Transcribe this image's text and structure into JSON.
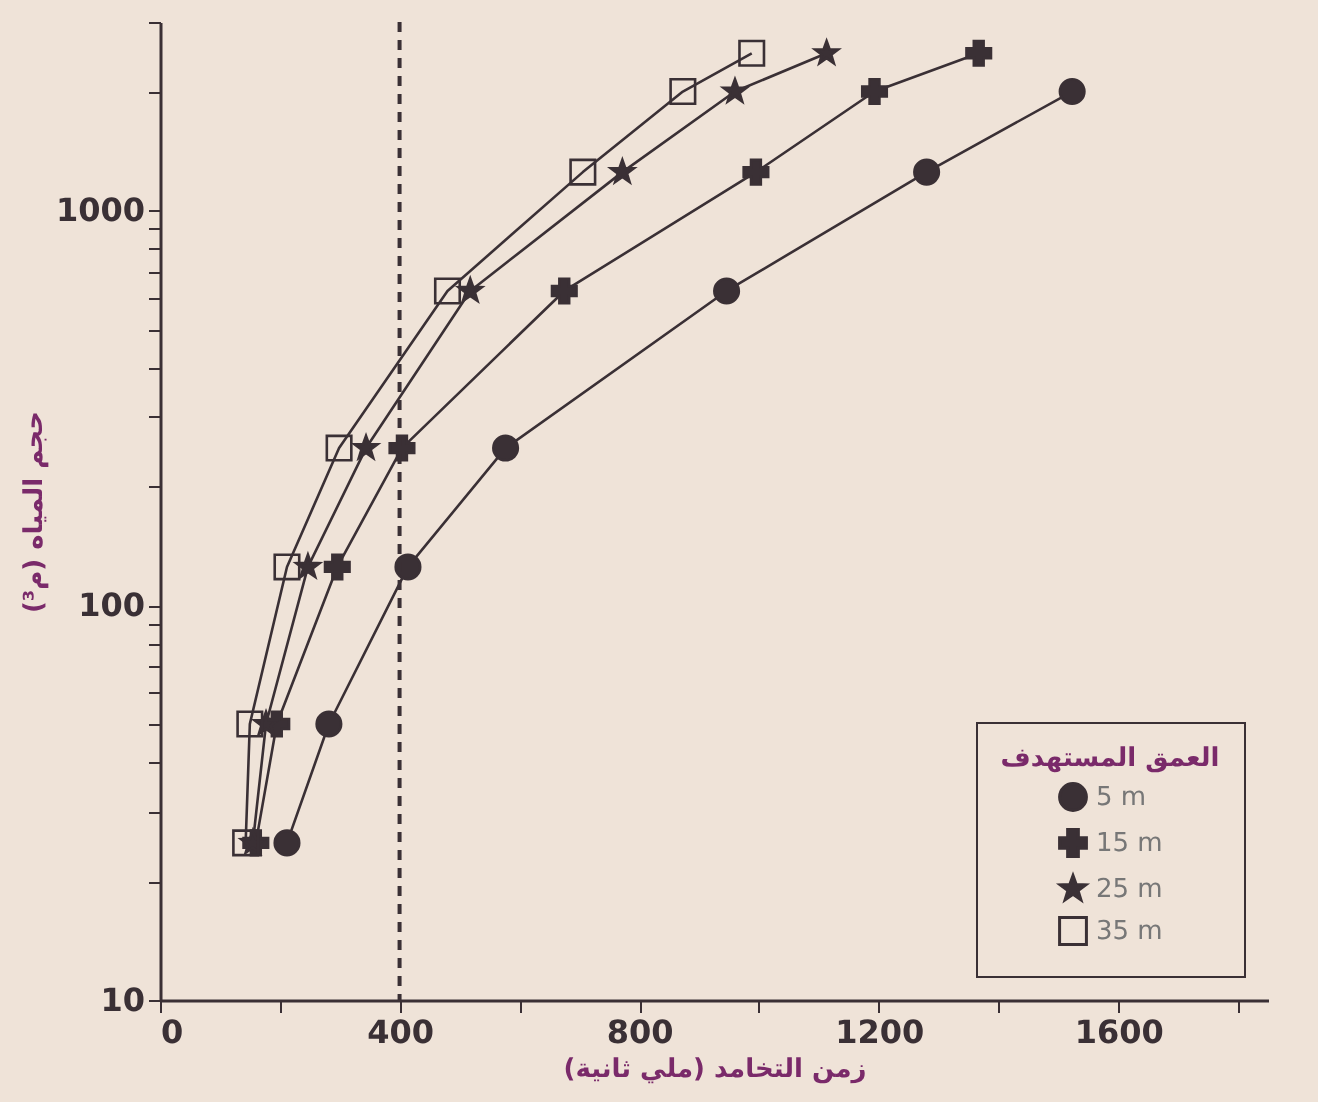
{
  "chart_data": {
    "type": "line",
    "xlabel": "زمن التخامد (ملي ثانية)",
    "ylabel": "حجم المياه (م³)",
    "legend_title": "العمق المستهدف",
    "legend": "bottom right",
    "grid": false,
    "log": "y",
    "line_style": "solid",
    "xlim": [
      0,
      1850
    ],
    "xticks": [
      0,
      {
        "value": 200,
        "label": null
      },
      400,
      {
        "value": 600,
        "label": null
      },
      800,
      {
        "value": 1000,
        "label": null
      },
      1200,
      {
        "value": 1400,
        "label": null
      },
      1600,
      {
        "value": 1800,
        "label": null
      }
    ],
    "ylim": [
      10,
      3000
    ],
    "yticks": [
      10,
      {
        "value": 20,
        "label": null
      },
      {
        "value": 30,
        "label": null
      },
      {
        "value": 40,
        "label": null
      },
      {
        "value": 50,
        "label": null
      },
      {
        "value": 60,
        "label": null
      },
      {
        "value": 70,
        "label": null
      },
      {
        "value": 80,
        "label": null
      },
      {
        "value": 90,
        "label": null
      },
      100,
      {
        "value": 200,
        "label": null
      },
      {
        "value": 300,
        "label": null
      },
      {
        "value": 400,
        "label": null
      },
      {
        "value": 500,
        "label": null
      },
      {
        "value": 600,
        "label": null
      },
      {
        "value": 700,
        "label": null
      },
      {
        "value": 800,
        "label": null
      },
      {
        "value": 900,
        "label": null
      },
      1000,
      {
        "value": 2000,
        "label": null
      },
      {
        "value": 3000,
        "label": null
      }
    ],
    "ref_lines": [
      {
        "axis": "x",
        "value": 400,
        "line_style": "dashed",
        "color": "#3a3035"
      }
    ],
    "series": [
      {
        "name": "5 m",
        "color": "#3a3035",
        "marker": "circle",
        "x": [
          212,
          282,
          414,
          577,
          946,
          1280,
          1523
        ],
        "values": [
          25,
          50,
          125,
          250,
          625,
          1250,
          2000
        ]
      },
      {
        "name": "15 m",
        "color": "#3a3035",
        "marker": "cross",
        "x": [
          160,
          195,
          296,
          404,
          675,
          995,
          1193,
          1367
        ],
        "values": [
          25,
          50,
          125,
          250,
          625,
          1250,
          2000,
          2500
        ]
      },
      {
        "name": "25 m",
        "color": "#3a3035",
        "marker": "star",
        "x": [
          155,
          177,
          247,
          344,
          518,
          772,
          960,
          1113
        ],
        "values": [
          25,
          50,
          125,
          250,
          625,
          1250,
          2000,
          2500
        ]
      },
      {
        "name": "35 m",
        "color": "#3a3035",
        "marker": "square",
        "x": [
          143,
          150,
          212,
          299,
          480,
          706,
          873,
          988
        ],
        "values": [
          25,
          50,
          125,
          250,
          625,
          1250,
          2000,
          2500
        ]
      }
    ]
  }
}
